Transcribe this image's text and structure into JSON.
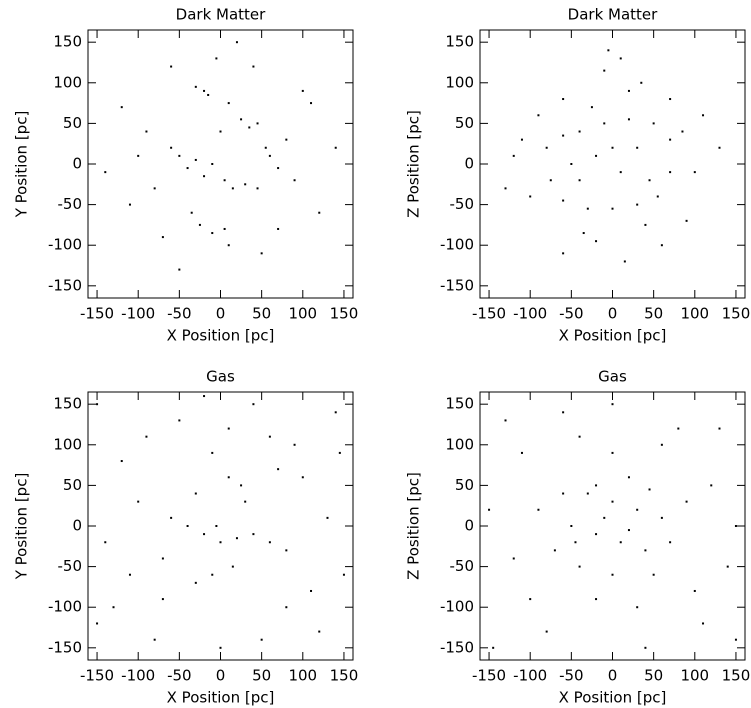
{
  "chart_data": [
    {
      "type": "scatter",
      "title": "Dark Matter",
      "xlabel": "X Position [pc]",
      "ylabel": "Y Position [pc]",
      "color": "#000000",
      "xlim": [
        -161,
        161
      ],
      "ylim": [
        -165,
        165
      ],
      "xticks": [
        -150,
        -100,
        -50,
        0,
        50,
        100,
        150
      ],
      "yticks": [
        -150,
        -100,
        -50,
        0,
        50,
        100,
        150
      ],
      "x": [
        -30,
        -20,
        -15,
        10,
        25,
        35,
        45,
        -60,
        -50,
        -40,
        -30,
        -20,
        -10,
        5,
        15,
        30,
        45,
        60,
        70,
        55,
        -25,
        -10,
        5,
        10,
        -35,
        80,
        90,
        -80,
        -90,
        -100,
        -110,
        100,
        110,
        -5,
        40,
        -60,
        -120,
        120,
        50,
        -50,
        20,
        -140,
        140,
        0,
        -70,
        70
      ],
      "y": [
        95,
        90,
        85,
        75,
        55,
        45,
        50,
        20,
        10,
        -5,
        5,
        -15,
        0,
        -20,
        -30,
        -25,
        -30,
        10,
        -5,
        20,
        -75,
        -85,
        -80,
        -100,
        -60,
        30,
        -20,
        -30,
        40,
        10,
        -50,
        90,
        75,
        130,
        120,
        120,
        70,
        -60,
        -110,
        -130,
        150,
        -10,
        20,
        40,
        -90,
        -80
      ]
    },
    {
      "type": "scatter",
      "title": "Dark Matter",
      "xlabel": "X Position [pc]",
      "ylabel": "Z Position [pc]",
      "color": "#000000",
      "xlim": [
        -161,
        161
      ],
      "ylim": [
        -165,
        165
      ],
      "xticks": [
        -150,
        -100,
        -50,
        0,
        50,
        100,
        150
      ],
      "yticks": [
        -150,
        -100,
        -50,
        0,
        50,
        100,
        150
      ],
      "x": [
        -80,
        -75,
        -60,
        -30,
        0,
        30,
        55,
        70,
        70,
        50,
        20,
        -10,
        -40,
        -60,
        -20,
        10,
        30,
        -40,
        35,
        20,
        -5,
        -10,
        -100,
        -110,
        110,
        90,
        -20,
        60,
        -60,
        130,
        -130,
        10,
        45,
        -50,
        0,
        85,
        -90,
        40,
        -35,
        100,
        -120,
        70,
        -60,
        15,
        -25
      ],
      "y": [
        20,
        -20,
        -45,
        -55,
        -55,
        -50,
        -40,
        -10,
        30,
        50,
        55,
        50,
        40,
        35,
        10,
        -10,
        20,
        -20,
        100,
        90,
        140,
        115,
        -40,
        30,
        60,
        -70,
        -95,
        -100,
        -110,
        20,
        -30,
        130,
        -20,
        0,
        20,
        40,
        60,
        -75,
        -85,
        -10,
        10,
        80,
        80,
        -120,
        70
      ]
    },
    {
      "type": "scatter",
      "title": "Gas",
      "xlabel": "X Position [pc]",
      "ylabel": "Y Position [pc]",
      "color": "#000000",
      "xlim": [
        -161,
        161
      ],
      "ylim": [
        -165,
        165
      ],
      "xticks": [
        -150,
        -100,
        -50,
        0,
        50,
        100,
        150
      ],
      "yticks": [
        -150,
        -100,
        -50,
        0,
        50,
        100,
        150
      ],
      "x": [
        -40,
        -20,
        0,
        20,
        40,
        60,
        -60,
        -10,
        10,
        25,
        -30,
        -10,
        15,
        -70,
        80,
        -100,
        100,
        -130,
        140,
        -150,
        120,
        -50,
        60,
        -120,
        130,
        -140,
        0,
        50,
        -80,
        90,
        -90,
        30,
        -30,
        -5,
        70,
        -70,
        110,
        150,
        -150,
        40,
        -20,
        80,
        -110,
        10,
        145
      ],
      "y": [
        0,
        -10,
        -20,
        -15,
        -10,
        -20,
        10,
        90,
        60,
        50,
        -70,
        -60,
        -50,
        -40,
        -30,
        30,
        60,
        -100,
        140,
        150,
        -130,
        130,
        110,
        80,
        10,
        -20,
        -150,
        -140,
        -140,
        100,
        110,
        30,
        40,
        0,
        70,
        -90,
        -80,
        -60,
        -120,
        150,
        160,
        -100,
        -60,
        120,
        90
      ]
    },
    {
      "type": "scatter",
      "title": "Gas",
      "xlabel": "X Position [pc]",
      "ylabel": "Z Position [pc]",
      "color": "#000000",
      "xlim": [
        -161,
        161
      ],
      "ylim": [
        -165,
        165
      ],
      "xticks": [
        -150,
        -100,
        -50,
        0,
        50,
        100,
        150
      ],
      "yticks": [
        -150,
        -100,
        -50,
        0,
        50,
        100,
        150
      ],
      "x": [
        -30,
        0,
        30,
        -50,
        -20,
        10,
        40,
        60,
        -70,
        -40,
        0,
        50,
        20,
        -60,
        70,
        -10,
        20,
        -90,
        90,
        0,
        -20,
        100,
        -100,
        130,
        -130,
        150,
        -145,
        0,
        40,
        -60,
        120,
        -120,
        150,
        -150,
        80,
        -80,
        60,
        -110,
        110,
        30,
        -40,
        140,
        -20,
        45,
        -45
      ],
      "y": [
        40,
        30,
        20,
        0,
        -10,
        -20,
        -30,
        10,
        -30,
        -50,
        -60,
        -60,
        60,
        40,
        -20,
        10,
        -5,
        20,
        30,
        90,
        -90,
        -80,
        -90,
        120,
        130,
        -140,
        -150,
        150,
        -150,
        140,
        50,
        -40,
        0,
        20,
        120,
        -130,
        100,
        90,
        -120,
        -100,
        110,
        -50,
        50,
        45,
        -20
      ]
    }
  ]
}
